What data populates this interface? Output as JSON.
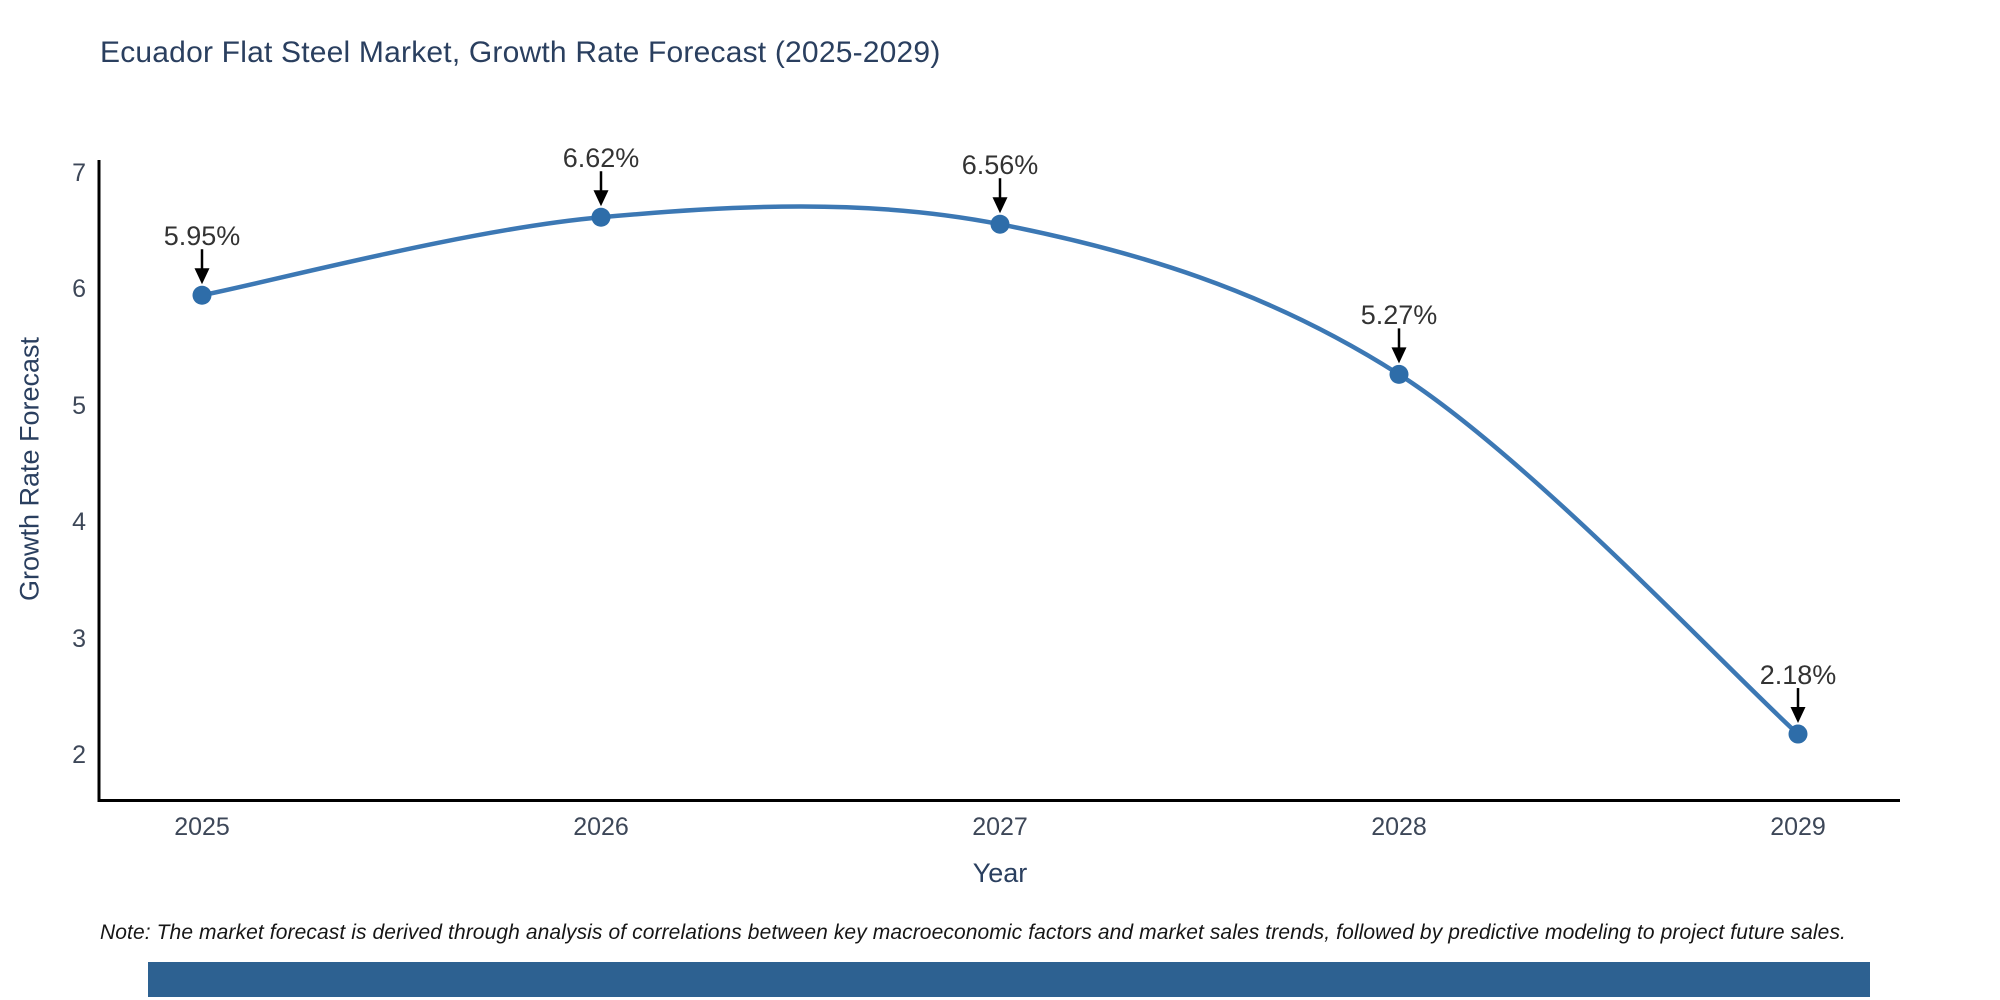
{
  "title": "Ecuador Flat Steel Market, Growth Rate Forecast (2025-2029)",
  "chart_data": {
    "type": "line",
    "title": "Ecuador Flat Steel Market, Growth Rate Forecast (2025-2029)",
    "xlabel": "Year",
    "ylabel": "Growth Rate Forecast",
    "x": [
      2025,
      2026,
      2027,
      2028,
      2029
    ],
    "values": [
      5.95,
      6.62,
      6.56,
      5.27,
      2.18
    ],
    "point_labels": [
      "5.95%",
      "6.62%",
      "6.56%",
      "5.27%",
      "2.18%"
    ],
    "yticks": [
      7,
      6,
      5,
      4,
      3,
      2
    ],
    "ylim": [
      1.6,
      7.1
    ],
    "line_shape": "spline",
    "grid": false,
    "legend": "none",
    "annotations": "value labels with downward arrows above each data point"
  },
  "note": "Note: The market forecast is derived through analysis of correlations between key macroeconomic factors and market sales trends, followed by predictive modeling to project future sales.",
  "colors": {
    "line": "#3c78b4",
    "marker": "#2e6da9",
    "axis_line": "#000000",
    "arrow": "#000000",
    "title_text": "#2a3f5f",
    "axis_title_text": "#2a3f5f",
    "tick_text": "#3d4758",
    "annotation_text": "#333333",
    "note_text": "#161616",
    "footer_bar": "#2d6191",
    "background": "#ffffff"
  }
}
